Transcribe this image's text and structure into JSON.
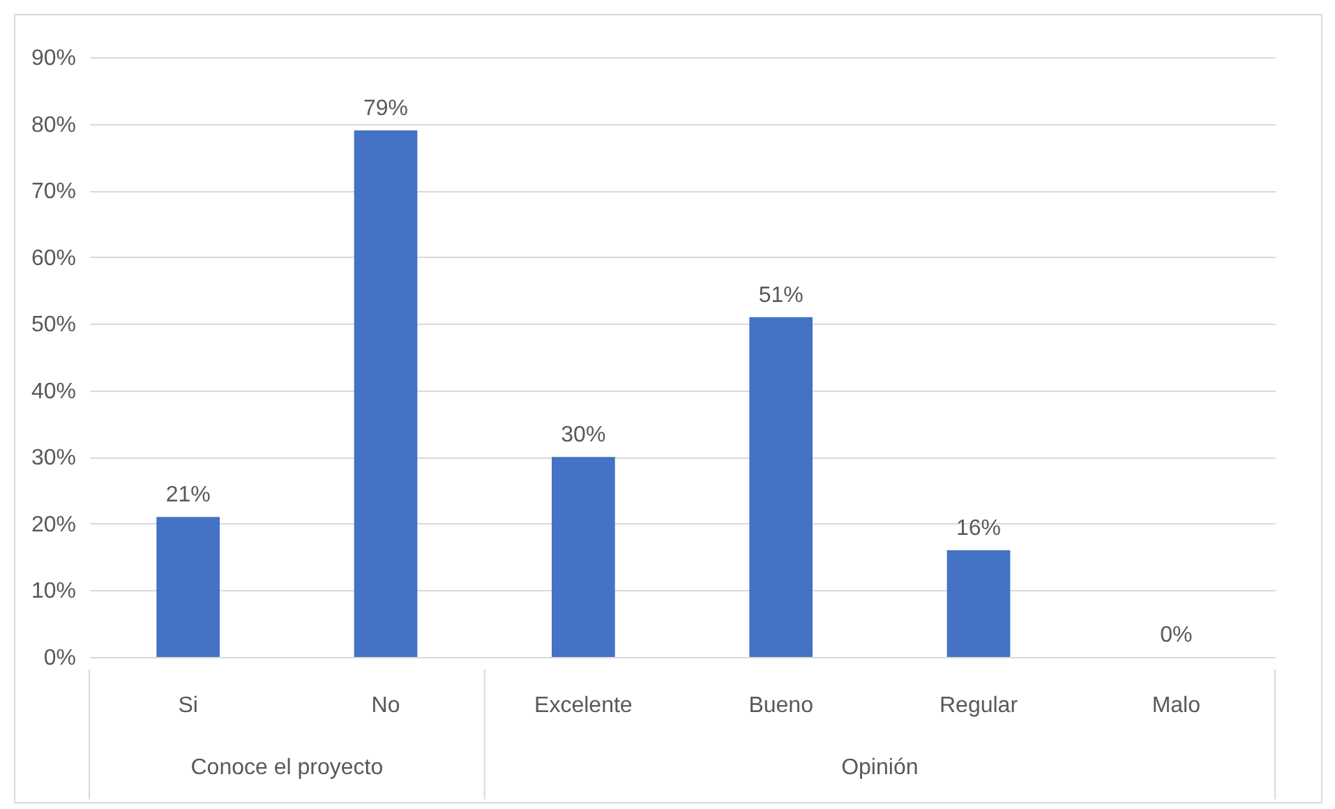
{
  "chart_data": {
    "type": "bar",
    "categories": [
      "Si",
      "No",
      "Excelente",
      "Bueno",
      "Regular",
      "Malo"
    ],
    "values": [
      21,
      79,
      30,
      51,
      16,
      0
    ],
    "color": "#4472c4",
    "value_labels": [
      "21%",
      "79%",
      "30%",
      "51%",
      "16%",
      "0%"
    ],
    "ylim": [
      0,
      90
    ],
    "yticks": [
      {
        "value": 0,
        "label": "0%"
      },
      {
        "value": 10,
        "label": "10%"
      },
      {
        "value": 20,
        "label": "20%"
      },
      {
        "value": 30,
        "label": "30%"
      },
      {
        "value": 40,
        "label": "40%"
      },
      {
        "value": 50,
        "label": "50%"
      },
      {
        "value": 60,
        "label": "60%"
      },
      {
        "value": 70,
        "label": "70%"
      },
      {
        "value": 80,
        "label": "80%"
      },
      {
        "value": 90,
        "label": "90%"
      }
    ],
    "grid": "y",
    "annotations": [
      "Conoce el proyecto",
      "Opinión"
    ]
  }
}
